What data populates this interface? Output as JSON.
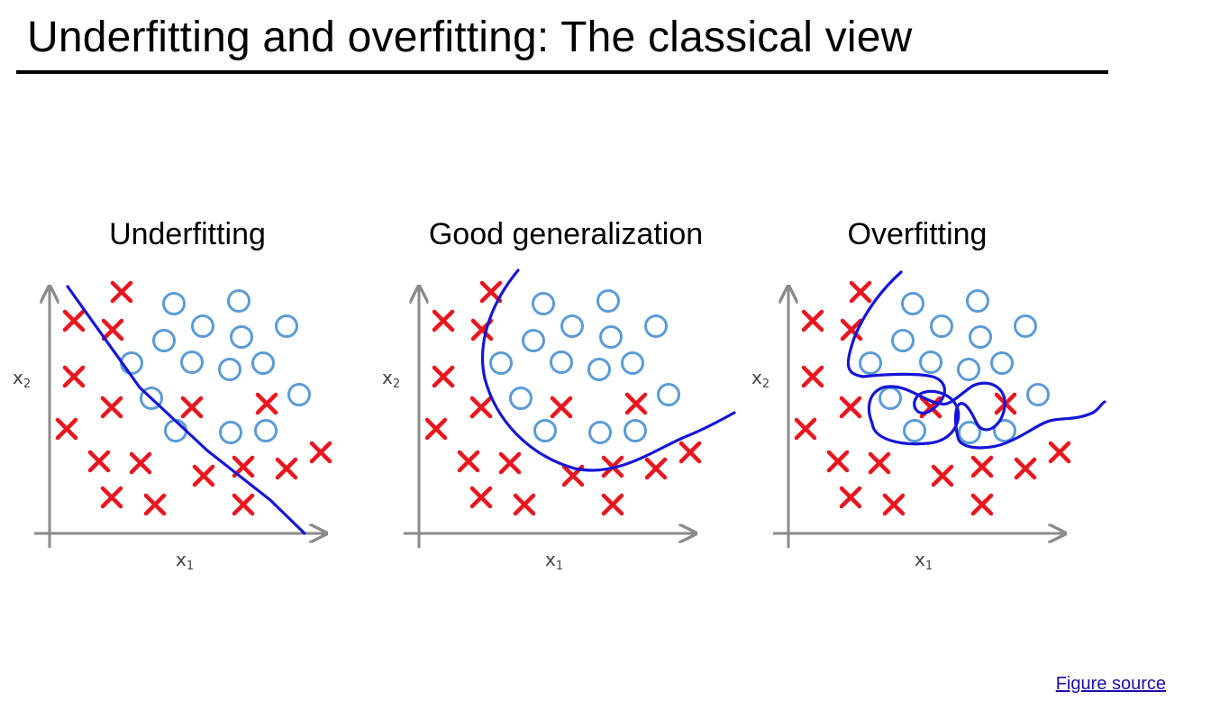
{
  "slide": {
    "title": "Underfitting and overfitting: The classical view",
    "link_label": "Figure source"
  },
  "panels": [
    {
      "title": "Underfitting",
      "xlabel": "x",
      "xlabel_sub": "1",
      "ylabel": "x",
      "ylabel_sub": "2"
    },
    {
      "title": "Good generalization",
      "xlabel": "x",
      "xlabel_sub": "1",
      "ylabel": "x",
      "ylabel_sub": "2"
    },
    {
      "title": "Overfitting",
      "xlabel": "x",
      "xlabel_sub": "1",
      "ylabel": "x",
      "ylabel_sub": "2"
    }
  ],
  "colors": {
    "cross": "#e8161e",
    "circle": "#5b9bd5",
    "boundary": "#1515d6",
    "axis": "#8a8a8a"
  }
}
